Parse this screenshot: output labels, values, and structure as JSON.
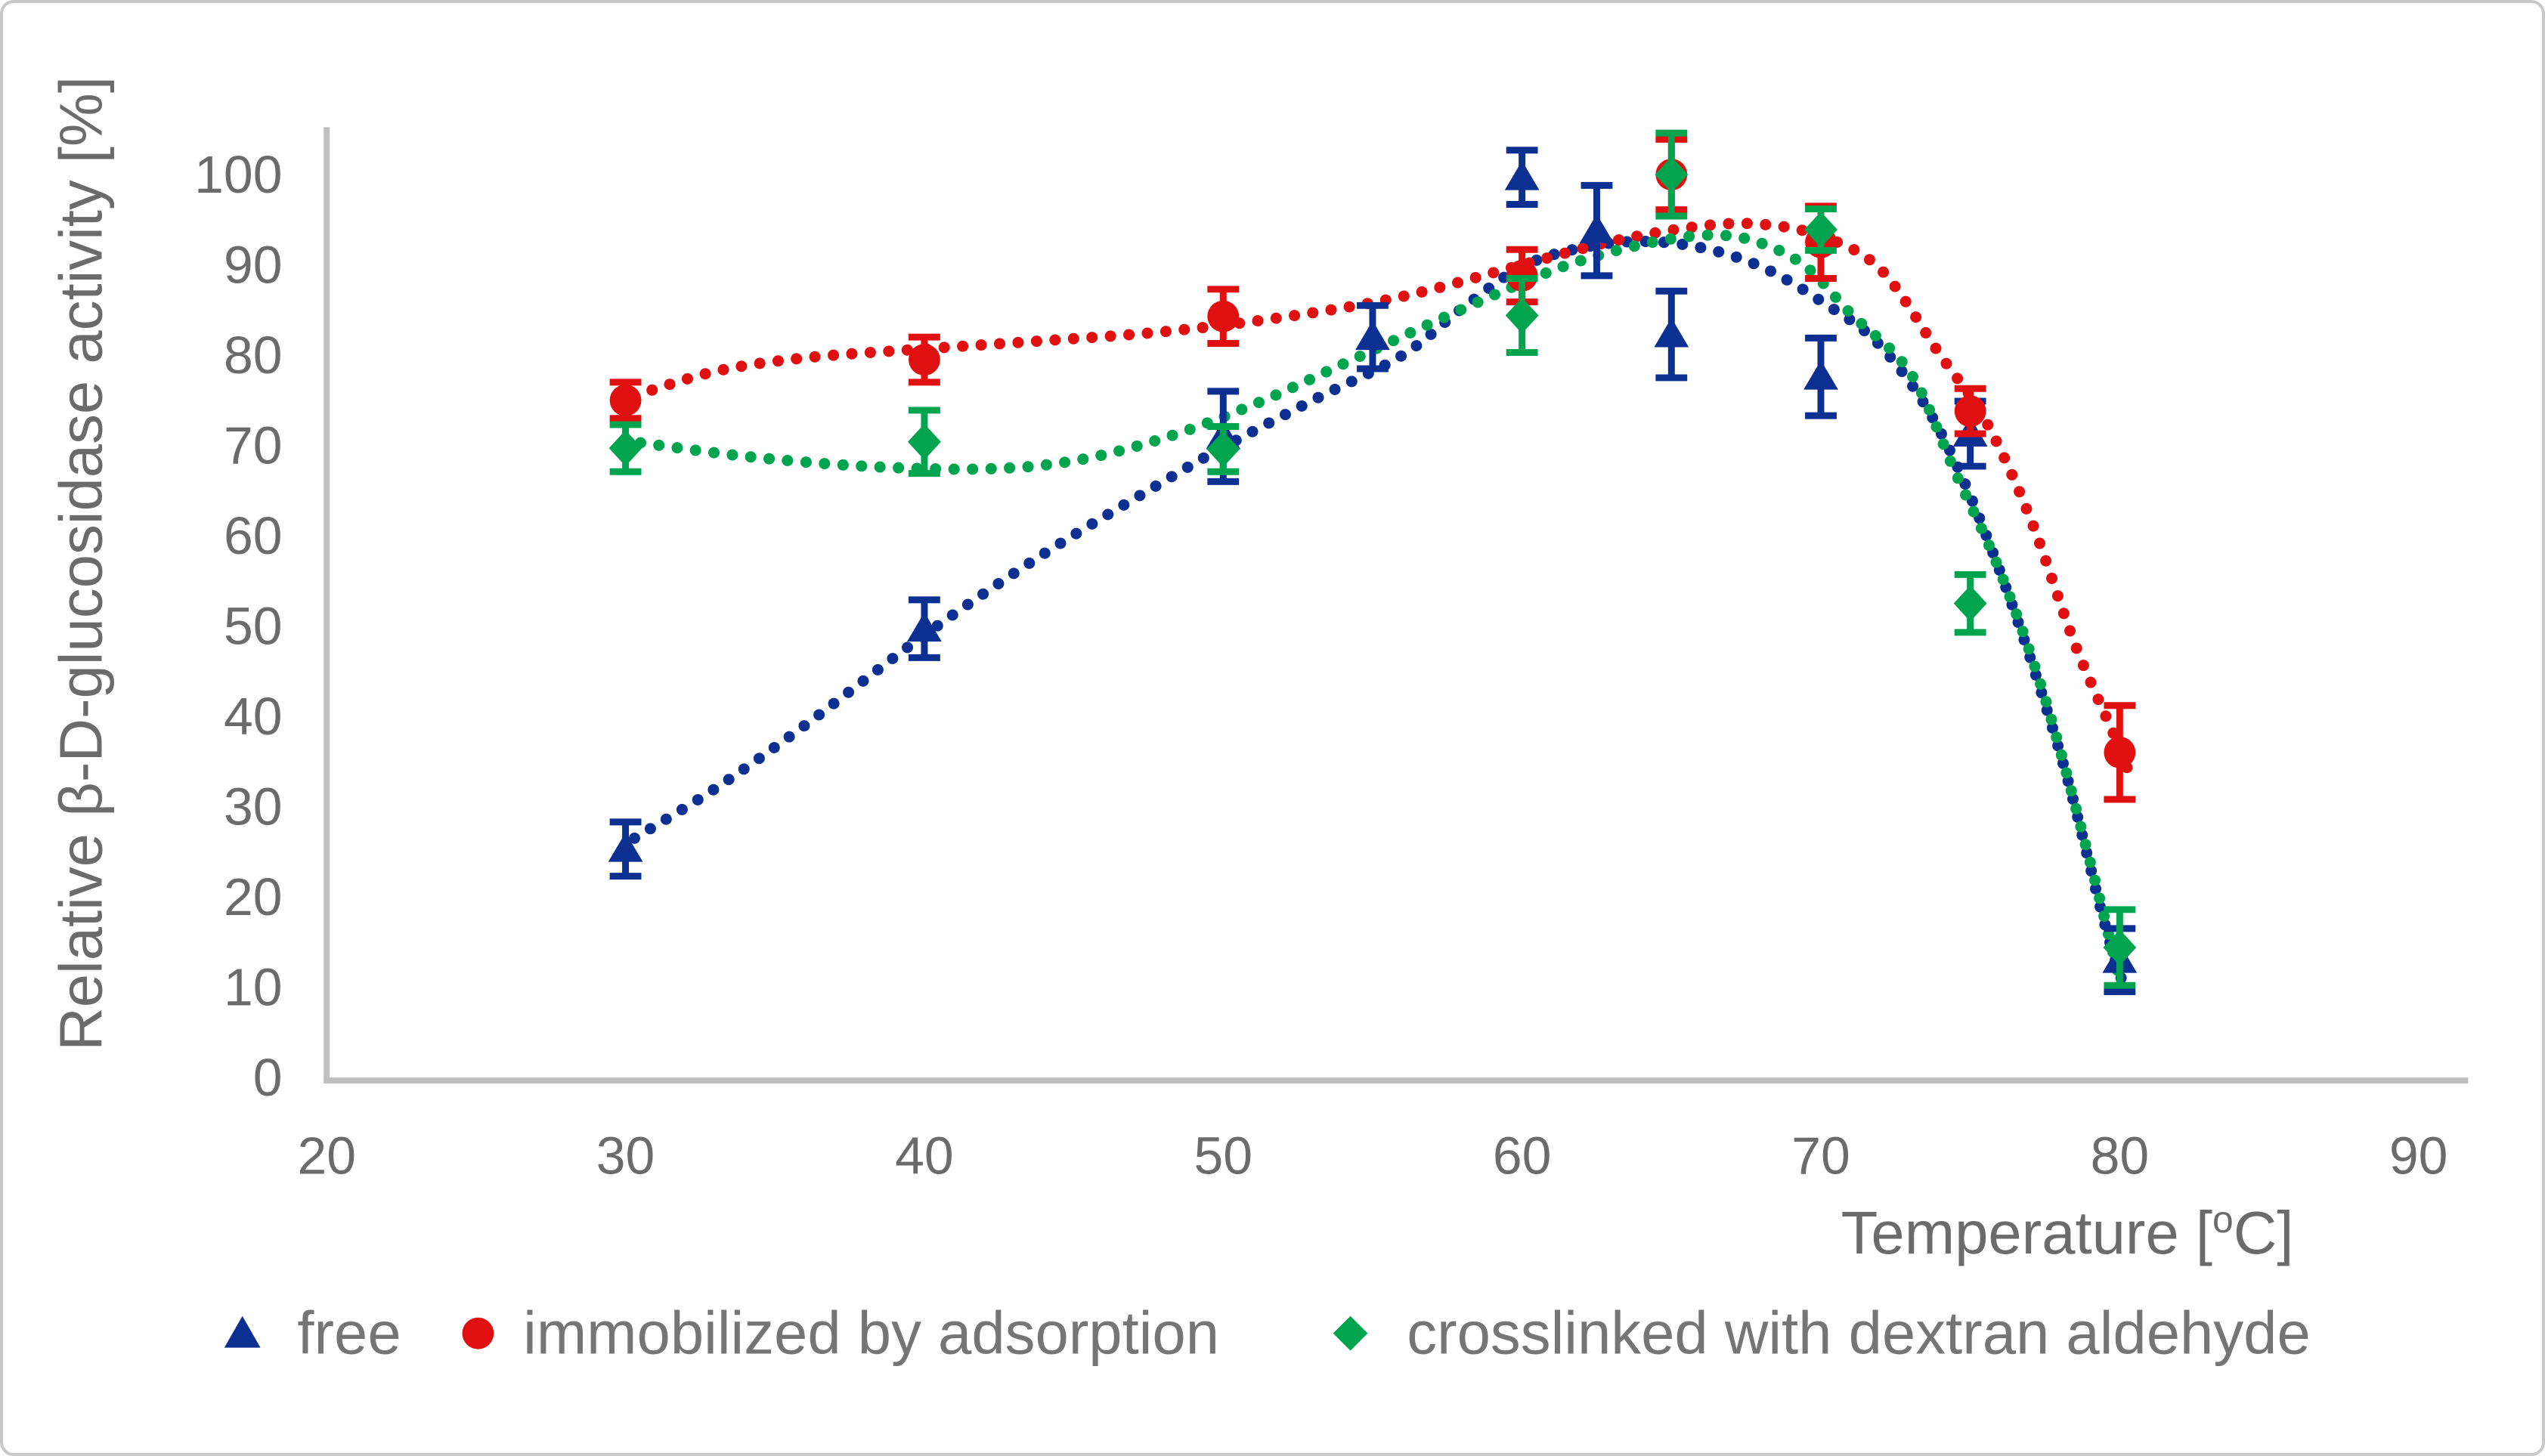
{
  "figure": {
    "background": "#ffffff",
    "border_color": "#c9c9c9"
  },
  "axes": {
    "line_color": "#bfbfbf",
    "text_color": "#6b6b6b",
    "x": {
      "title_parts": {
        "prefix": "Temperature [",
        "superscript": "o",
        "suffix": "C]"
      },
      "ticks": [
        20,
        30,
        40,
        50,
        60,
        70,
        80,
        90
      ],
      "min": 20,
      "max": 90
    },
    "y": {
      "title": "Relative β-D-glucosidase activity [%]",
      "ticks": [
        0,
        10,
        20,
        30,
        40,
        50,
        60,
        70,
        80,
        90,
        100
      ],
      "min": 0,
      "max": 100
    }
  },
  "legend": {
    "items": [
      {
        "label": "free",
        "marker": "triangle",
        "color": "#0c2f92"
      },
      {
        "label": "immobilized by adsorption",
        "marker": "circle",
        "color": "#e01010"
      },
      {
        "label": "crosslinked with dextran aldehyde",
        "marker": "diamond",
        "color": "#00a44f"
      }
    ]
  },
  "chart_data": {
    "type": "scatter",
    "title": "",
    "xlabel": "Temperature [°C]",
    "ylabel": "Relative β-D-glucosidase activity [%]",
    "xlim": [
      20,
      90
    ],
    "ylim": [
      0,
      100
    ],
    "x_tick_step": 10,
    "y_tick_step": 10,
    "grid": false,
    "legend_position": "bottom",
    "trendline_style": "dotted",
    "series": [
      {
        "name": "free",
        "marker": "triangle",
        "color": "#0c2f92",
        "points": [
          {
            "x": 30,
            "y": 25.3,
            "err": 3.0
          },
          {
            "x": 40,
            "y": 49.7,
            "err": 3.2
          },
          {
            "x": 50,
            "y": 71.0,
            "err": 5.0
          },
          {
            "x": 55,
            "y": 82.0,
            "err": 3.5
          },
          {
            "x": 60,
            "y": 99.7,
            "err": 3.0
          },
          {
            "x": 62.5,
            "y": 93.8,
            "err": 5.0
          },
          {
            "x": 65,
            "y": 82.3,
            "err": 4.8
          },
          {
            "x": 70,
            "y": 77.6,
            "err": 4.3
          },
          {
            "x": 75,
            "y": 71.3,
            "err": 3.6
          },
          {
            "x": 80,
            "y": 13.0,
            "err": 3.5
          }
        ],
        "trend": [
          [
            30.3,
            26.5
          ],
          [
            33,
            32
          ],
          [
            36,
            39
          ],
          [
            40,
            49
          ],
          [
            44,
            58
          ],
          [
            48,
            66
          ],
          [
            50,
            69.8
          ],
          [
            53,
            75
          ],
          [
            56,
            80
          ],
          [
            58,
            85.2
          ],
          [
            60,
            89.8
          ],
          [
            62,
            91.9
          ],
          [
            64,
            92.6
          ],
          [
            66,
            91.9
          ],
          [
            68,
            89.8
          ],
          [
            70,
            86
          ],
          [
            72,
            81
          ],
          [
            74,
            71.5
          ],
          [
            76,
            56
          ],
          [
            78,
            36
          ],
          [
            79.5,
            17
          ],
          [
            80.2,
            9.5
          ]
        ]
      },
      {
        "name": "immobilized by adsorption",
        "marker": "circle",
        "color": "#e01010",
        "points": [
          {
            "x": 30,
            "y": 75.0,
            "err": 2.0
          },
          {
            "x": 40,
            "y": 79.5,
            "err": 2.5
          },
          {
            "x": 50,
            "y": 84.3,
            "err": 3.0
          },
          {
            "x": 60,
            "y": 88.8,
            "err": 2.9
          },
          {
            "x": 65,
            "y": 100.0,
            "err": 3.9
          },
          {
            "x": 70,
            "y": 92.5,
            "err": 4.0
          },
          {
            "x": 75,
            "y": 73.8,
            "err": 2.5
          },
          {
            "x": 80,
            "y": 36.0,
            "err": 5.2
          }
        ],
        "trend": [
          [
            30.3,
            75.5
          ],
          [
            33,
            78.2
          ],
          [
            36,
            79.7
          ],
          [
            40,
            80.7
          ],
          [
            44,
            81.6
          ],
          [
            48,
            82.6
          ],
          [
            52,
            84.2
          ],
          [
            56,
            86.5
          ],
          [
            60,
            90
          ],
          [
            63,
            92.6
          ],
          [
            66,
            94.3
          ],
          [
            68,
            94.5
          ],
          [
            70,
            93.2
          ],
          [
            72,
            89.5
          ],
          [
            74,
            80
          ],
          [
            75.5,
            72.8
          ],
          [
            77,
            62
          ],
          [
            78.5,
            48
          ],
          [
            79.8,
            38
          ],
          [
            80.4,
            33
          ]
        ]
      },
      {
        "name": "crosslinked with dextran aldehyde",
        "marker": "diamond",
        "color": "#00a44f",
        "points": [
          {
            "x": 30,
            "y": 69.7,
            "err": 2.6
          },
          {
            "x": 40,
            "y": 70.4,
            "err": 3.5
          },
          {
            "x": 50,
            "y": 69.6,
            "err": 2.5
          },
          {
            "x": 60,
            "y": 84.4,
            "err": 4.1
          },
          {
            "x": 65,
            "y": 100.0,
            "err": 4.6
          },
          {
            "x": 70,
            "y": 93.9,
            "err": 2.3
          },
          {
            "x": 75,
            "y": 52.5,
            "err": 3.2
          },
          {
            "x": 80,
            "y": 14.4,
            "err": 4.2
          }
        ],
        "trend": [
          [
            30.5,
            70.3
          ],
          [
            34,
            68.8
          ],
          [
            38,
            67.7
          ],
          [
            42,
            67.4
          ],
          [
            45,
            68.3
          ],
          [
            48,
            70.8
          ],
          [
            51,
            74.5
          ],
          [
            54,
            79
          ],
          [
            57,
            83.6
          ],
          [
            60,
            88
          ],
          [
            62,
            90.5
          ],
          [
            64.5,
            92.6
          ],
          [
            66.5,
            93.3
          ],
          [
            68,
            92.4
          ],
          [
            69.5,
            89.8
          ],
          [
            71,
            84.6
          ],
          [
            73,
            78
          ],
          [
            74.5,
            67
          ],
          [
            76,
            56
          ],
          [
            77.5,
            42
          ],
          [
            79,
            24
          ],
          [
            80.1,
            9.5
          ]
        ]
      }
    ]
  }
}
